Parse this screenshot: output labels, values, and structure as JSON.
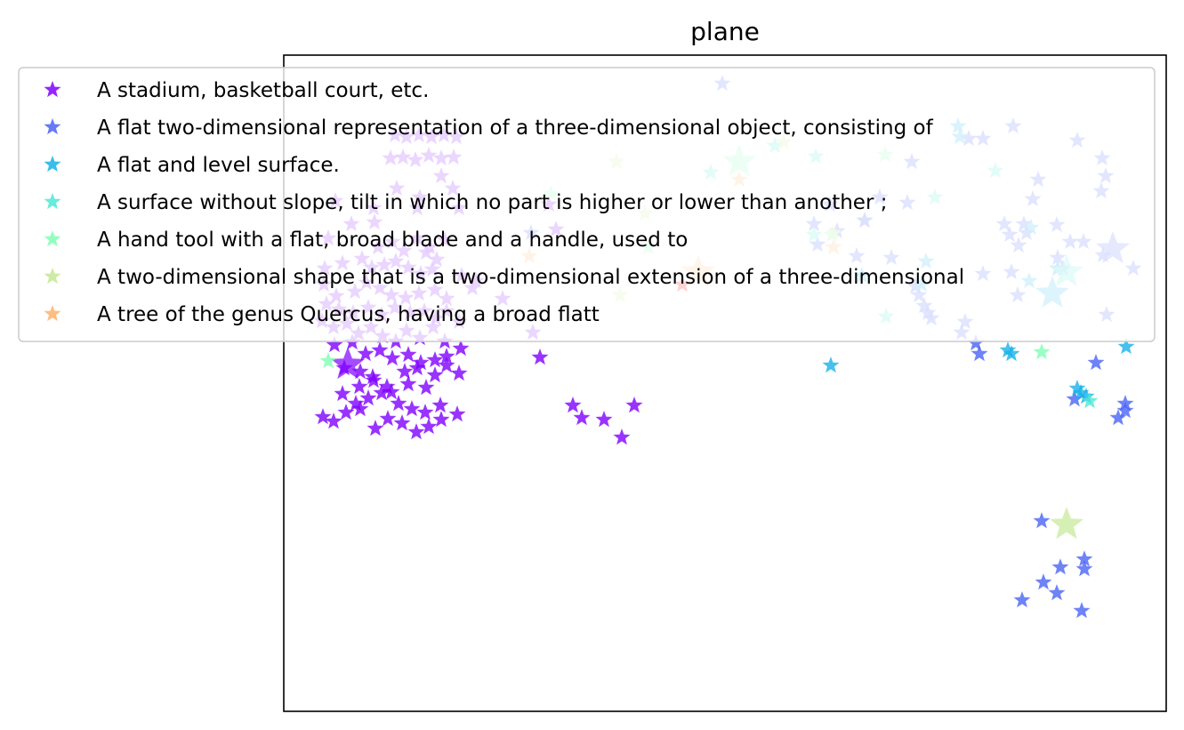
{
  "chart_data": {
    "type": "scatter",
    "title": "plane",
    "xlabel": "",
    "ylabel": "",
    "axes_ticks": "none",
    "legend_placement": "upper-left overlapping plot",
    "series": [
      {
        "name": "A stadium, basketball court, etc.",
        "color": "#8000ff",
        "points": [
          [
            125,
            90
          ],
          [
            138,
            92
          ],
          [
            152,
            90
          ],
          [
            166,
            92
          ],
          [
            180,
            90
          ],
          [
            194,
            92
          ],
          [
            120,
            116
          ],
          [
            134,
            115
          ],
          [
            148,
            118
          ],
          [
            163,
            113
          ],
          [
            177,
            116
          ],
          [
            191,
            115
          ],
          [
            58,
            164
          ],
          [
            101,
            172
          ],
          [
            127,
            150
          ],
          [
            150,
            172
          ],
          [
            153,
            160
          ],
          [
            177,
            136
          ],
          [
            190,
            150
          ],
          [
            197,
            172
          ],
          [
            102,
            188
          ],
          [
            76,
            190
          ],
          [
            50,
            206
          ],
          [
            106,
            216
          ],
          [
            122,
            210
          ],
          [
            135,
            220
          ],
          [
            150,
            206
          ],
          [
            164,
            216
          ],
          [
            181,
            208
          ],
          [
            160,
            222
          ],
          [
            172,
            230
          ],
          [
            46,
            240
          ],
          [
            66,
            234
          ],
          [
            88,
            229
          ],
          [
            99,
            239
          ],
          [
            113,
            236
          ],
          [
            126,
            232
          ],
          [
            140,
            239
          ],
          [
            154,
            246
          ],
          [
            167,
            241
          ],
          [
            45,
            258
          ],
          [
            59,
            271
          ],
          [
            80,
            266
          ],
          [
            93,
            256
          ],
          [
            108,
            262
          ],
          [
            121,
            270
          ],
          [
            137,
            273
          ],
          [
            152,
            268
          ],
          [
            170,
            264
          ],
          [
            183,
            274
          ],
          [
            48,
            280
          ],
          [
            62,
            286
          ],
          [
            78,
            290
          ],
          [
            95,
            284
          ],
          [
            110,
            292
          ],
          [
            125,
            284
          ],
          [
            142,
            290
          ],
          [
            158,
            288
          ],
          [
            171,
            296
          ],
          [
            183,
            288
          ],
          [
            197,
            300
          ],
          [
            43,
            299
          ],
          [
            56,
            306
          ],
          [
            71,
            302
          ],
          [
            84,
            313
          ],
          [
            98,
            306
          ],
          [
            111,
            316
          ],
          [
            126,
            322
          ],
          [
            138,
            310
          ],
          [
            153,
            318
          ],
          [
            168,
            306
          ],
          [
            181,
            322
          ],
          [
            57,
            326
          ],
          [
            77,
            323
          ],
          [
            92,
            336
          ],
          [
            108,
            332
          ],
          [
            122,
            341
          ],
          [
            140,
            337
          ],
          [
            154,
            346
          ],
          [
            170,
            343
          ],
          [
            183,
            339
          ],
          [
            199,
            330
          ],
          [
            86,
            356
          ],
          [
            101,
            366
          ],
          [
            116,
            373
          ],
          [
            136,
            356
          ],
          [
            150,
            352
          ],
          [
            170,
            360
          ],
          [
            183,
            349
          ],
          [
            197,
            358
          ],
          [
            66,
            381
          ],
          [
            85,
            373
          ],
          [
            100,
            362
          ],
          [
            121,
            379
          ],
          [
            140,
            370
          ],
          [
            160,
            374
          ],
          [
            81,
            392
          ],
          [
            95,
            386
          ],
          [
            110,
            380
          ],
          [
            129,
            392
          ],
          [
            144,
            398
          ],
          [
            159,
            402
          ],
          [
            176,
            394
          ],
          [
            44,
            407
          ],
          [
            56,
            412
          ],
          [
            70,
            402
          ],
          [
            86,
            398
          ],
          [
            103,
            420
          ],
          [
            117,
            409
          ],
          [
            133,
            414
          ],
          [
            149,
            424
          ],
          [
            163,
            418
          ],
          [
            177,
            410
          ],
          [
            195,
            404
          ],
          [
            325,
            394
          ],
          [
            335,
            408
          ],
          [
            360,
            410
          ],
          [
            394,
            394
          ],
          [
            380,
            430
          ],
          [
            216,
            254
          ],
          [
            246,
            274
          ],
          [
            280,
            312
          ],
          [
            288,
            340
          ],
          [
            200,
            248
          ],
          [
            212,
            262
          ],
          [
            306,
            196
          ],
          [
            298,
            168
          ],
          [
            68,
            352
          ]
        ],
        "big_points": [
          [
            72,
            348
          ]
        ]
      },
      {
        "name": "A flat two-dimensional representation of a three-dimensional object, consisting of",
        "color": "#4a64f5",
        "points": [
          [
            493,
            32
          ],
          [
            835,
            200
          ],
          [
            832,
            190
          ],
          [
            921,
            225
          ],
          [
            876,
            240
          ],
          [
            955,
            240
          ],
          [
            818,
            244
          ],
          [
            826,
            214
          ],
          [
            899,
            210
          ],
          [
            925,
            292
          ],
          [
            913,
            346
          ],
          [
            938,
            408
          ],
          [
            766,
            300
          ],
          [
            762,
            312
          ],
          [
            778,
            324
          ],
          [
            782,
            336
          ],
          [
            720,
            282
          ],
          [
            724,
            290
          ],
          [
            683,
            228
          ],
          [
            810,
            190
          ],
          [
            816,
            202
          ],
          [
            869,
            191
          ],
          [
            884,
            210
          ],
          [
            870,
            228
          ],
          [
            946,
            392
          ],
          [
            946,
            400
          ],
          [
            889,
            387
          ],
          [
            900,
            578
          ],
          [
            852,
            524
          ],
          [
            900,
            567
          ],
          [
            873,
            576
          ],
          [
            830,
            613
          ],
          [
            869,
            605
          ],
          [
            854,
            593
          ],
          [
            897,
            625
          ],
          [
            653,
            186
          ],
          [
            710,
            260
          ],
          [
            714,
            270
          ],
          [
            728,
            296
          ],
          [
            644,
            226
          ],
          [
            870,
            240
          ],
          [
            786,
            246
          ],
          [
            825,
            270
          ],
          [
            600,
            213
          ],
          [
            596,
            190
          ],
          [
            278,
            200
          ],
          [
            706,
            120
          ],
          [
            770,
            94
          ],
          [
            786,
            94
          ],
          [
            820,
            80
          ],
          [
            892,
            96
          ],
          [
            919,
            153
          ],
          [
            842,
            162
          ],
          [
            848,
            140
          ],
          [
            924,
            136
          ],
          [
            920,
            116
          ],
          [
            614,
            168
          ],
          [
            701,
            166
          ],
          [
            670,
            160
          ],
          [
            653,
            186
          ],
          [
            622,
            198
          ]
        ],
        "big_points": [
          [
            932,
            218
          ]
        ]
      },
      {
        "name": "A flat and level surface.",
        "color": "#18b2e8",
        "points": [
          [
            760,
            92
          ],
          [
            758,
            80
          ],
          [
            722,
            232
          ],
          [
            717,
            258
          ],
          [
            947,
            328
          ],
          [
            838,
            254
          ],
          [
            840,
            194
          ],
          [
            902,
            384
          ],
          [
            814,
            332
          ],
          [
            650,
            248
          ],
          [
            615,
            349
          ],
          [
            892,
            375
          ],
          [
            896,
            380
          ],
          [
            818,
            336
          ],
          [
            870,
            240
          ]
        ],
        "big_points": [
          [
            864,
            268
          ]
        ]
      },
      {
        "name": "A surface without slope, tilt in which no part is higher or lower than another ;",
        "color": "#4de8d4",
        "points": [
          [
            732,
            160
          ],
          [
            677,
            294
          ],
          [
            906,
            389
          ],
          [
            800,
            130
          ],
          [
            596,
            202
          ],
          [
            552,
            102
          ],
          [
            598,
            114
          ],
          [
            480,
            132
          ]
        ],
        "big_points": [
          [
            880,
            244
          ]
        ]
      },
      {
        "name": "A hand tool with a flat, broad blade and a handle, used to",
        "color": "#80ffb4",
        "points": [
          [
            50,
            344
          ],
          [
            852,
            334
          ],
          [
            616,
            202
          ],
          [
            410,
            216
          ],
          [
            676,
            112
          ],
          [
            300,
            156
          ]
        ],
        "big_points": [
          [
            512,
            120
          ]
        ]
      },
      {
        "name": "A two-dimensional shape that is a two-dimensional extension of a three-dimensional",
        "color": "#c4e894",
        "points": [
          [
            406,
            178
          ],
          [
            618,
            200
          ],
          [
            378,
            270
          ],
          [
            374,
            120
          ],
          [
            562,
            98
          ]
        ],
        "big_points": [
          [
            880,
            528
          ]
        ]
      },
      {
        "name": "A tree of the genus Quercus, having a broad flatt",
        "color": "#ffb36b",
        "points": [
          [
            618,
            216
          ],
          [
            276,
            226
          ],
          [
            512,
            140
          ]
        ],
        "big_points": [
          [
            466,
            244
          ]
        ]
      }
    ],
    "highlight_point": {
      "label": "plane",
      "color": "#ff0000",
      "x": 448,
      "y": 258
    },
    "xlim": [
      0,
      992
    ],
    "ylim": [
      0,
      738
    ]
  }
}
